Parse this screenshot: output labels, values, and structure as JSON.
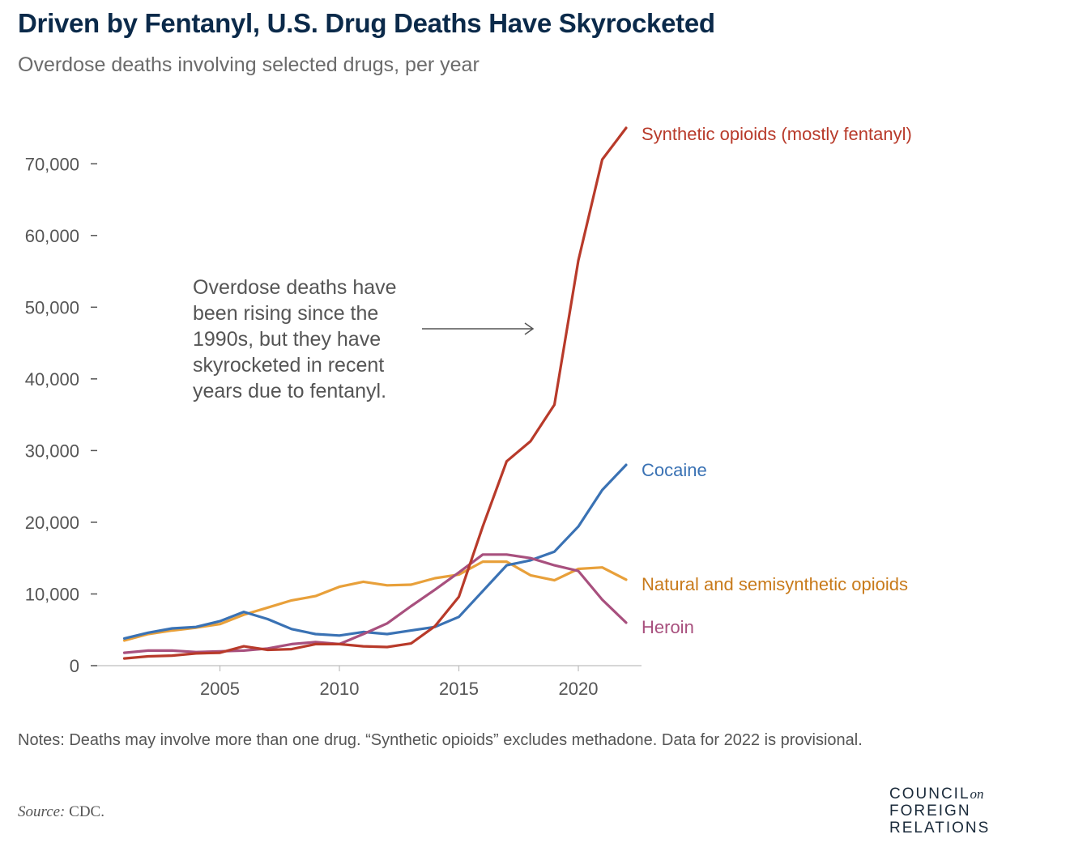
{
  "title": "Driven by Fentanyl, U.S. Drug Deaths Have Skyrocketed",
  "subtitle": "Overdose deaths involving selected drugs, per year",
  "notes": "Notes: Deaths may involve more than one drug. “Synthetic opioids” excludes methadone. Data for 2022 is provisional.",
  "source_label": "Source:",
  "source_value": "CDC.",
  "logo": {
    "line1": "COUNCIL",
    "line1_small": "on",
    "line2": "FOREIGN",
    "line3": "RELATIONS"
  },
  "annotation": [
    "Overdose deaths have",
    "been rising since the",
    "1990s, but they have",
    "skyrocketed in recent",
    "years due to fentanyl."
  ],
  "chart_data": {
    "type": "line",
    "title": "Driven by Fentanyl, U.S. Drug Deaths Have Skyrocketed",
    "xlabel": "",
    "ylabel": "",
    "x": [
      2001,
      2002,
      2003,
      2004,
      2005,
      2006,
      2007,
      2008,
      2009,
      2010,
      2011,
      2012,
      2013,
      2014,
      2015,
      2016,
      2017,
      2018,
      2019,
      2020,
      2021,
      2022
    ],
    "xlim": [
      2000.1,
      2022
    ],
    "ylim": [
      0,
      75000
    ],
    "x_ticks": [
      2005,
      2010,
      2015,
      2020
    ],
    "x_tick_labels": [
      "2005",
      "2010",
      "2015",
      "2020"
    ],
    "y_ticks": [
      0,
      10000,
      20000,
      30000,
      40000,
      50000,
      60000,
      70000
    ],
    "y_tick_labels": [
      "0",
      "10,000",
      "20,000",
      "30,000",
      "40,000",
      "50,000",
      "60,000",
      "70,000"
    ],
    "grid": false,
    "series": [
      {
        "name": "Synthetic opioids (mostly fentanyl)",
        "color": "#b83a2a",
        "values": [
          1000,
          1300,
          1400,
          1700,
          1800,
          2700,
          2200,
          2300,
          3000,
          3000,
          2700,
          2600,
          3100,
          5500,
          9600,
          19400,
          28500,
          31300,
          36400,
          56500,
          70600,
          75000
        ]
      },
      {
        "name": "Cocaine",
        "color": "#3a72b4",
        "values": [
          3800,
          4600,
          5200,
          5400,
          6200,
          7500,
          6500,
          5100,
          4400,
          4200,
          4700,
          4400,
          4900,
          5400,
          6800,
          10400,
          14000,
          14700,
          15900,
          19400,
          24500,
          28000
        ]
      },
      {
        "name": "Natural and semisynthetic opioids",
        "color": "#e8a03a",
        "label_color": "#c87a1a",
        "values": [
          3500,
          4400,
          4900,
          5300,
          5800,
          7100,
          8100,
          9100,
          9700,
          11000,
          11700,
          11200,
          11300,
          12200,
          12700,
          14500,
          14500,
          12600,
          11900,
          13500,
          13700,
          12000
        ]
      },
      {
        "name": "Heroin",
        "color": "#a8507e",
        "values": [
          1800,
          2100,
          2100,
          1900,
          2000,
          2100,
          2400,
          3000,
          3300,
          3000,
          4400,
          5900,
          8300,
          10600,
          13000,
          15500,
          15500,
          15000,
          14000,
          13200,
          9200,
          6000
        ]
      }
    ]
  }
}
